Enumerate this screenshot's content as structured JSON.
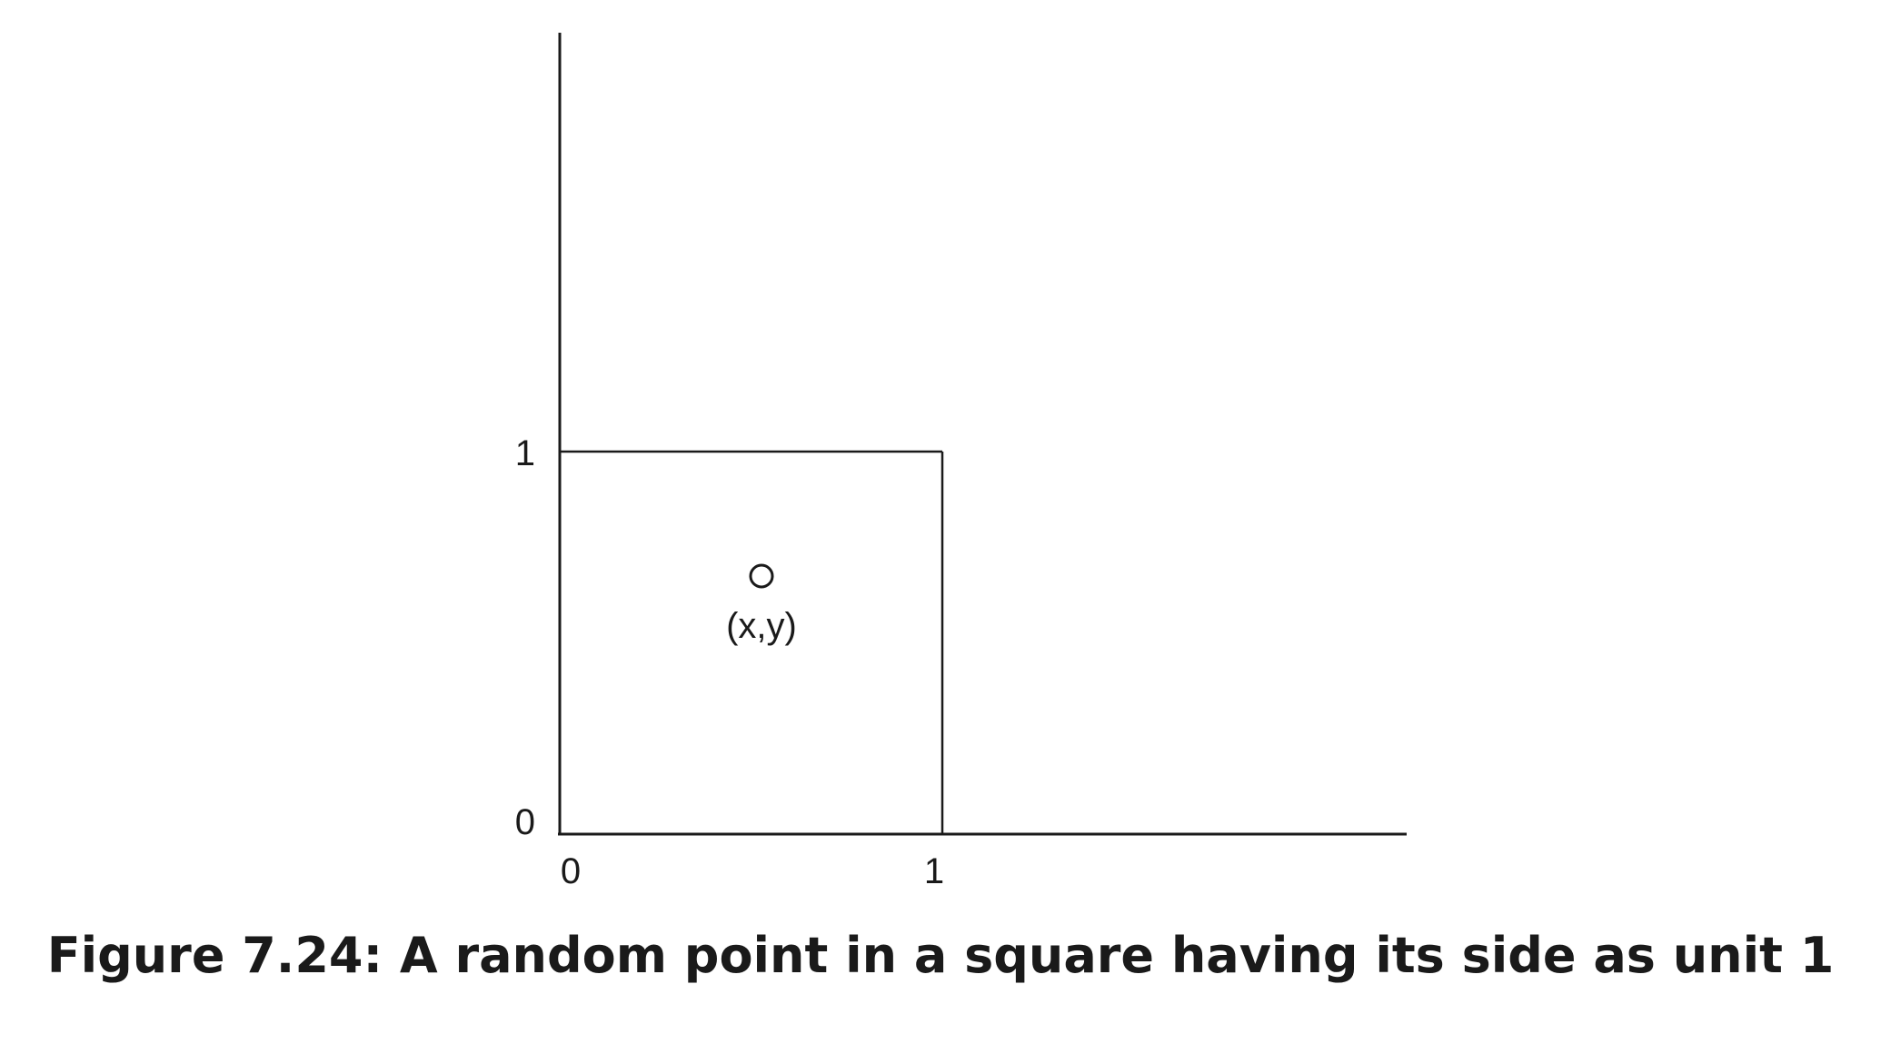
{
  "figure": {
    "caption": "Figure 7.24: A random point in a square having its side as unit 1",
    "x_axis_ticks": [
      "0",
      "1"
    ],
    "y_axis_ticks": [
      "0",
      "1"
    ],
    "point_label": "(x,y)",
    "colors": {
      "stroke": "#1a1a1a",
      "background": "#ffffff"
    }
  }
}
